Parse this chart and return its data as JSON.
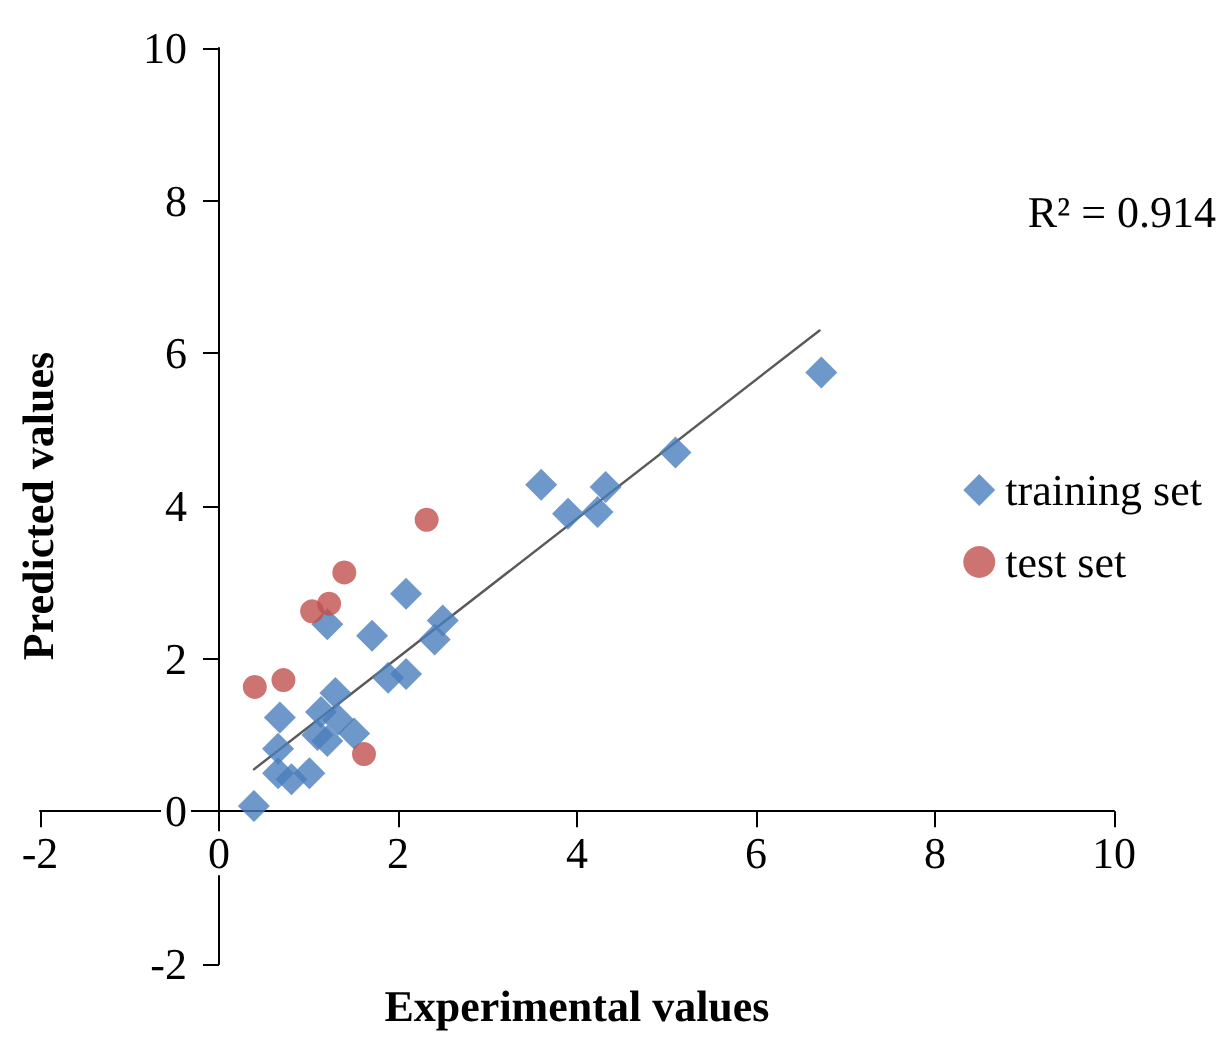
{
  "chart_data": {
    "type": "scatter",
    "xlabel": "Experimental values",
    "ylabel": "Predicted values",
    "xlim": [
      -2,
      10
    ],
    "ylim": [
      -2,
      10
    ],
    "xticks": [
      -2,
      0,
      2,
      4,
      6,
      8,
      10
    ],
    "yticks": [
      -2,
      0,
      2,
      4,
      6,
      8,
      10
    ],
    "legend": "right",
    "annotations": [
      "R² = 0.914"
    ],
    "series": [
      {
        "name": "training set",
        "color": "#4a7ebb",
        "marker": "diamond",
        "x": [
          0.39,
          0.68,
          0.66,
          0.66,
          0.81,
          1.01,
          1.21,
          1.14,
          1.21,
          1.3,
          1.33,
          1.51,
          1.1,
          1.71,
          1.89,
          2.09,
          2.09,
          2.41,
          2.5,
          3.6,
          3.9,
          4.23,
          4.32,
          5.1,
          6.73
        ],
        "values": [
          0.07,
          1.23,
          0.82,
          0.5,
          0.42,
          0.5,
          2.45,
          1.3,
          0.92,
          1.55,
          1.2,
          1.02,
          1.0,
          2.3,
          1.75,
          1.8,
          2.85,
          2.25,
          2.5,
          4.28,
          3.9,
          3.92,
          4.25,
          4.7,
          5.75
        ]
      },
      {
        "name": "test set",
        "color": "#c0504d",
        "marker": "circle",
        "x": [
          0.4,
          0.72,
          1.04,
          1.23,
          1.4,
          2.32,
          1.62
        ],
        "values": [
          1.63,
          1.72,
          2.62,
          2.72,
          3.13,
          3.82,
          0.75
        ]
      },
      {
        "type": "line",
        "color": "#595959",
        "marker": "none",
        "x": [
          0.39,
          6.71
        ],
        "values": [
          0.55,
          6.3
        ]
      }
    ]
  }
}
